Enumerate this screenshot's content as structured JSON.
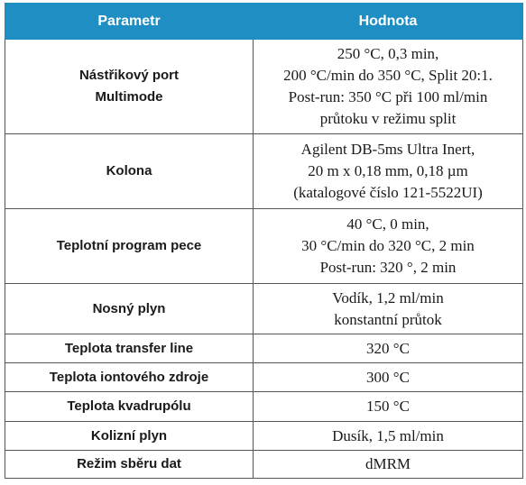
{
  "headers": {
    "parameter": "Parametr",
    "value": "Hodnota"
  },
  "rows": [
    {
      "label": [
        "Nástřikový port",
        "Multimode"
      ],
      "value": [
        "250 °C, 0,3 min,",
        "200 °C/min do 350 °C, Split 20:1.",
        "Post-run: 350 °C při 100 ml/min",
        "průtoku v režimu split"
      ]
    },
    {
      "label": [
        "Kolona"
      ],
      "value": [
        "Agilent DB-5ms Ultra Inert,",
        "20 m x 0,18 mm, 0,18 µm",
        "(katalogové číslo 121-5522UI)"
      ]
    },
    {
      "label": [
        "Teplotní program pece"
      ],
      "value": [
        "40 °C, 0 min,",
        "30 °C/min do 320 °C, 2 min",
        "Post-run: 320 °, 2 min"
      ]
    },
    {
      "label": [
        "Nosný plyn"
      ],
      "value": [
        "Vodík, 1,2 ml/min",
        "konstantní průtok"
      ]
    },
    {
      "label": [
        "Teplota transfer line"
      ],
      "value": [
        "320 °C"
      ]
    },
    {
      "label": [
        "Teplota iontového zdroje"
      ],
      "value": [
        "300 °C"
      ]
    },
    {
      "label": [
        "Teplota kvadrupólu"
      ],
      "value": [
        "150 °C"
      ]
    },
    {
      "label": [
        "Kolizní plyn"
      ],
      "value": [
        "Dusík, 1,5 ml/min"
      ]
    },
    {
      "label": [
        "Režim sběru dat"
      ],
      "value": [
        "dMRM"
      ]
    }
  ]
}
